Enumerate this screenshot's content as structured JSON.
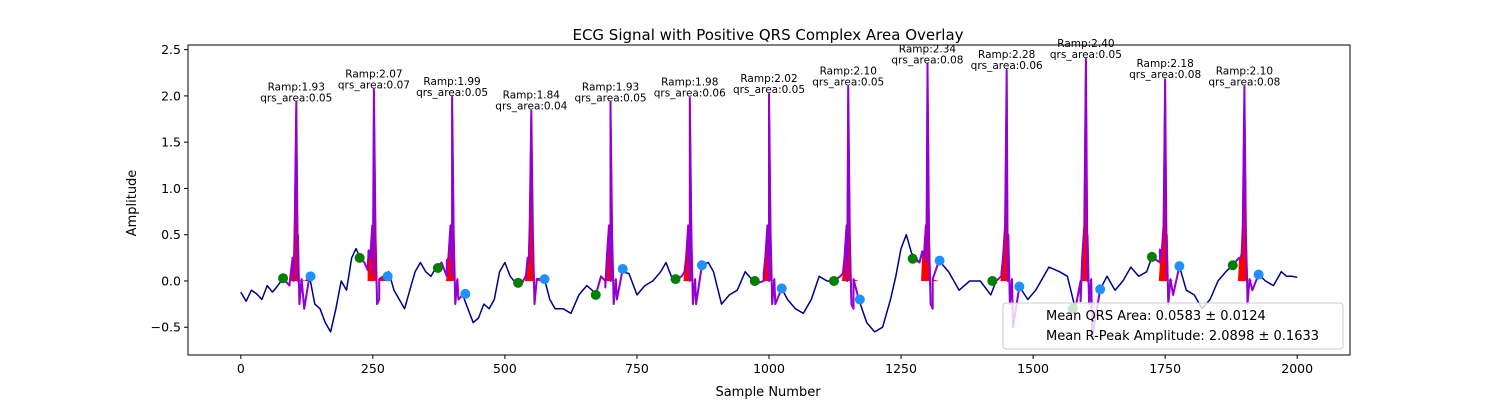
{
  "chart_data": {
    "type": "line",
    "title": "ECG Signal with Positive QRS Complex Area Overlay",
    "xlabel": "Sample Number",
    "ylabel": "Amplitude",
    "xlim": [
      -100,
      2100
    ],
    "ylim": [
      -0.8,
      2.55
    ],
    "xticks": [
      0,
      250,
      500,
      750,
      1000,
      1250,
      1500,
      1750,
      2000
    ],
    "xtick_labels": [
      "0",
      "250",
      "500",
      "750",
      "1000",
      "1250",
      "1500",
      "1750",
      "2000"
    ],
    "yticks": [
      -0.5,
      0.0,
      0.5,
      1.0,
      1.5,
      2.0,
      2.5
    ],
    "ytick_labels": [
      "−0.5",
      "0.0",
      "0.5",
      "1.0",
      "1.5",
      "2.0",
      "2.5"
    ],
    "grid": false,
    "legend_position": "lower-right",
    "colors": {
      "signal": "#00008b",
      "qrs_segment": "#9400d3",
      "qrs_area": "#ff0000",
      "onset_marker": "#008000",
      "offset_marker": "#1e90ff"
    },
    "signal_baseline_points": [
      [
        0,
        -0.12
      ],
      [
        10,
        -0.22
      ],
      [
        20,
        -0.1
      ],
      [
        30,
        -0.14
      ],
      [
        40,
        -0.2
      ],
      [
        50,
        -0.05
      ],
      [
        60,
        -0.12
      ],
      [
        70,
        -0.05
      ],
      [
        80,
        0.03
      ],
      [
        92,
        -0.05
      ],
      [
        100,
        0.0
      ],
      [
        108,
        0.0
      ],
      [
        120,
        -0.3
      ],
      [
        130,
        0.05
      ],
      [
        140,
        -0.25
      ],
      [
        150,
        -0.3
      ],
      [
        160,
        -0.45
      ],
      [
        170,
        -0.55
      ],
      [
        180,
        -0.3
      ],
      [
        190,
        0.0
      ],
      [
        200,
        -0.1
      ],
      [
        210,
        0.25
      ],
      [
        218,
        0.35
      ],
      [
        226,
        0.25
      ],
      [
        234,
        0.2
      ],
      [
        240,
        0.12
      ],
      [
        250,
        0.08
      ],
      [
        262,
        -0.2
      ],
      [
        270,
        0.05
      ],
      [
        280,
        0.1
      ],
      [
        290,
        -0.1
      ],
      [
        300,
        -0.2
      ],
      [
        310,
        -0.3
      ],
      [
        320,
        -0.1
      ],
      [
        330,
        0.1
      ],
      [
        340,
        0.2
      ],
      [
        350,
        0.1
      ],
      [
        360,
        0.05
      ],
      [
        370,
        0.15
      ],
      [
        380,
        0.2
      ],
      [
        390,
        0.05
      ],
      [
        400,
        0.05
      ],
      [
        412,
        -0.2
      ],
      [
        420,
        -0.15
      ],
      [
        430,
        -0.3
      ],
      [
        440,
        -0.45
      ],
      [
        450,
        -0.4
      ],
      [
        460,
        -0.25
      ],
      [
        470,
        -0.3
      ],
      [
        480,
        -0.2
      ],
      [
        490,
        0.1
      ],
      [
        500,
        0.2
      ],
      [
        510,
        0.05
      ],
      [
        520,
        -0.02
      ],
      [
        530,
        -0.05
      ],
      [
        545,
        0.2
      ],
      [
        560,
        0.0
      ],
      [
        575,
        0.02
      ],
      [
        585,
        -0.2
      ],
      [
        595,
        -0.3
      ],
      [
        610,
        -0.3
      ],
      [
        625,
        -0.35
      ],
      [
        640,
        -0.15
      ],
      [
        655,
        -0.05
      ],
      [
        665,
        -0.1
      ],
      [
        672,
        -0.15
      ],
      [
        682,
        0.05
      ],
      [
        690,
        0.0
      ],
      [
        700,
        0.0
      ],
      [
        712,
        -0.2
      ],
      [
        722,
        0.1
      ],
      [
        735,
        0.08
      ],
      [
        750,
        -0.15
      ],
      [
        765,
        -0.05
      ],
      [
        780,
        0.0
      ],
      [
        795,
        0.1
      ],
      [
        805,
        0.2
      ],
      [
        815,
        0.05
      ],
      [
        823,
        0.02
      ],
      [
        835,
        0.05
      ],
      [
        850,
        0.0
      ],
      [
        862,
        -0.25
      ],
      [
        873,
        0.17
      ],
      [
        885,
        0.2
      ],
      [
        895,
        0.1
      ],
      [
        910,
        -0.25
      ],
      [
        925,
        -0.15
      ],
      [
        940,
        -0.1
      ],
      [
        955,
        0.1
      ],
      [
        970,
        0.0
      ],
      [
        980,
        -0.02
      ],
      [
        990,
        0.0
      ],
      [
        1000,
        0.0
      ],
      [
        1012,
        -0.25
      ],
      [
        1024,
        -0.08
      ],
      [
        1035,
        -0.2
      ],
      [
        1050,
        -0.3
      ],
      [
        1065,
        -0.35
      ],
      [
        1080,
        -0.2
      ],
      [
        1095,
        0.05
      ],
      [
        1110,
        0.0
      ],
      [
        1120,
        0.0
      ],
      [
        1135,
        0.05
      ],
      [
        1148,
        0.0
      ],
      [
        1160,
        -0.3
      ],
      [
        1170,
        -0.2
      ],
      [
        1185,
        -0.45
      ],
      [
        1200,
        -0.55
      ],
      [
        1215,
        -0.5
      ],
      [
        1230,
        -0.2
      ],
      [
        1240,
        0.05
      ],
      [
        1250,
        0.35
      ],
      [
        1260,
        0.5
      ],
      [
        1270,
        0.3
      ],
      [
        1285,
        0.2
      ],
      [
        1298,
        0.2
      ],
      [
        1310,
        -0.3
      ],
      [
        1322,
        0.22
      ],
      [
        1340,
        0.1
      ],
      [
        1360,
        -0.1
      ],
      [
        1380,
        0.0
      ],
      [
        1400,
        0.0
      ],
      [
        1420,
        -0.15
      ],
      [
        1430,
        0.0
      ],
      [
        1440,
        0.05
      ],
      [
        1452,
        0.0
      ],
      [
        1462,
        -0.5
      ],
      [
        1474,
        -0.06
      ],
      [
        1490,
        -0.2
      ],
      [
        1505,
        -0.1
      ],
      [
        1515,
        0.0
      ],
      [
        1530,
        0.15
      ],
      [
        1550,
        0.1
      ],
      [
        1565,
        0.05
      ],
      [
        1580,
        -0.3
      ],
      [
        1590,
        0.0
      ],
      [
        1603,
        0.0
      ],
      [
        1612,
        -0.6
      ],
      [
        1627,
        -0.09
      ],
      [
        1640,
        0.05
      ],
      [
        1655,
        -0.1
      ],
      [
        1670,
        0.0
      ],
      [
        1685,
        0.15
      ],
      [
        1700,
        0.05
      ],
      [
        1715,
        0.1
      ],
      [
        1725,
        0.26
      ],
      [
        1740,
        0.2
      ],
      [
        1753,
        0.05
      ],
      [
        1765,
        -0.15
      ],
      [
        1777,
        0.16
      ],
      [
        1790,
        -0.1
      ],
      [
        1805,
        -0.15
      ],
      [
        1820,
        -0.3
      ],
      [
        1835,
        -0.2
      ],
      [
        1850,
        0.0
      ],
      [
        1865,
        0.1
      ],
      [
        1878,
        0.17
      ],
      [
        1895,
        0.3
      ],
      [
        1905,
        0.05
      ],
      [
        1915,
        -0.1
      ],
      [
        1927,
        0.07
      ],
      [
        1940,
        0.0
      ],
      [
        1955,
        -0.05
      ],
      [
        1970,
        0.1
      ],
      [
        1980,
        0.05
      ],
      [
        1990,
        0.05
      ],
      [
        2000,
        0.04
      ]
    ],
    "beats": [
      {
        "r_x": 105,
        "r_amp": 1.93,
        "qrs_area": 0.05,
        "onset": [
          80,
          0.03
        ],
        "offset": [
          132,
          0.05
        ],
        "label": "Ramp:1.93\nqrs_area:0.05"
      },
      {
        "r_x": 252,
        "r_amp": 2.07,
        "qrs_area": 0.07,
        "onset": [
          225,
          0.25
        ],
        "offset": [
          278,
          0.05
        ],
        "label": "Ramp:2.07\nqrs_area:0.07"
      },
      {
        "r_x": 400,
        "r_amp": 1.99,
        "qrs_area": 0.05,
        "onset": [
          373,
          0.14
        ],
        "offset": [
          425,
          -0.14
        ],
        "label": "Ramp:1.99\nqrs_area:0.05"
      },
      {
        "r_x": 550,
        "r_amp": 1.84,
        "qrs_area": 0.04,
        "onset": [
          525,
          -0.02
        ],
        "offset": [
          575,
          0.02
        ],
        "label": "Ramp:1.84\nqrs_area:0.04"
      },
      {
        "r_x": 700,
        "r_amp": 1.93,
        "qrs_area": 0.05,
        "onset": [
          672,
          -0.15
        ],
        "offset": [
          723,
          0.13
        ],
        "label": "Ramp:1.93\nqrs_area:0.05"
      },
      {
        "r_x": 850,
        "r_amp": 1.98,
        "qrs_area": 0.06,
        "onset": [
          823,
          0.02
        ],
        "offset": [
          873,
          0.17
        ],
        "label": "Ramp:1.98\nqrs_area:0.06"
      },
      {
        "r_x": 1000,
        "r_amp": 2.02,
        "qrs_area": 0.05,
        "onset": [
          973,
          0.0
        ],
        "offset": [
          1024,
          -0.08
        ],
        "label": "Ramp:2.02\nqrs_area:0.05"
      },
      {
        "r_x": 1150,
        "r_amp": 2.1,
        "qrs_area": 0.05,
        "onset": [
          1123,
          0.0
        ],
        "offset": [
          1172,
          -0.2
        ],
        "label": "Ramp:2.10\nqrs_area:0.05"
      },
      {
        "r_x": 1300,
        "r_amp": 2.34,
        "qrs_area": 0.08,
        "onset": [
          1272,
          0.24
        ],
        "offset": [
          1323,
          0.22
        ],
        "label": "Ramp:2.34\nqrs_area:0.08"
      },
      {
        "r_x": 1450,
        "r_amp": 2.28,
        "qrs_area": 0.06,
        "onset": [
          1423,
          0.0
        ],
        "offset": [
          1474,
          -0.06
        ],
        "label": "Ramp:2.28\nqrs_area:0.06"
      },
      {
        "r_x": 1600,
        "r_amp": 2.4,
        "qrs_area": 0.05,
        "onset": [
          1575,
          -0.3
        ],
        "offset": [
          1627,
          -0.09
        ],
        "label": "Ramp:2.40\nqrs_area:0.05"
      },
      {
        "r_x": 1750,
        "r_amp": 2.18,
        "qrs_area": 0.08,
        "onset": [
          1725,
          0.26
        ],
        "offset": [
          1777,
          0.16
        ],
        "label": "Ramp:2.18\nqrs_area:0.08"
      },
      {
        "r_x": 1900,
        "r_amp": 2.1,
        "qrs_area": 0.08,
        "onset": [
          1878,
          0.17
        ],
        "offset": [
          1927,
          0.07
        ],
        "label": "Ramp:2.10\nqrs_area:0.08"
      }
    ],
    "legend": {
      "lines": [
        "Mean QRS Area: 0.0583 ± 0.0124",
        "Mean R-Peak Amplitude: 2.0898 ± 0.1633"
      ]
    }
  }
}
